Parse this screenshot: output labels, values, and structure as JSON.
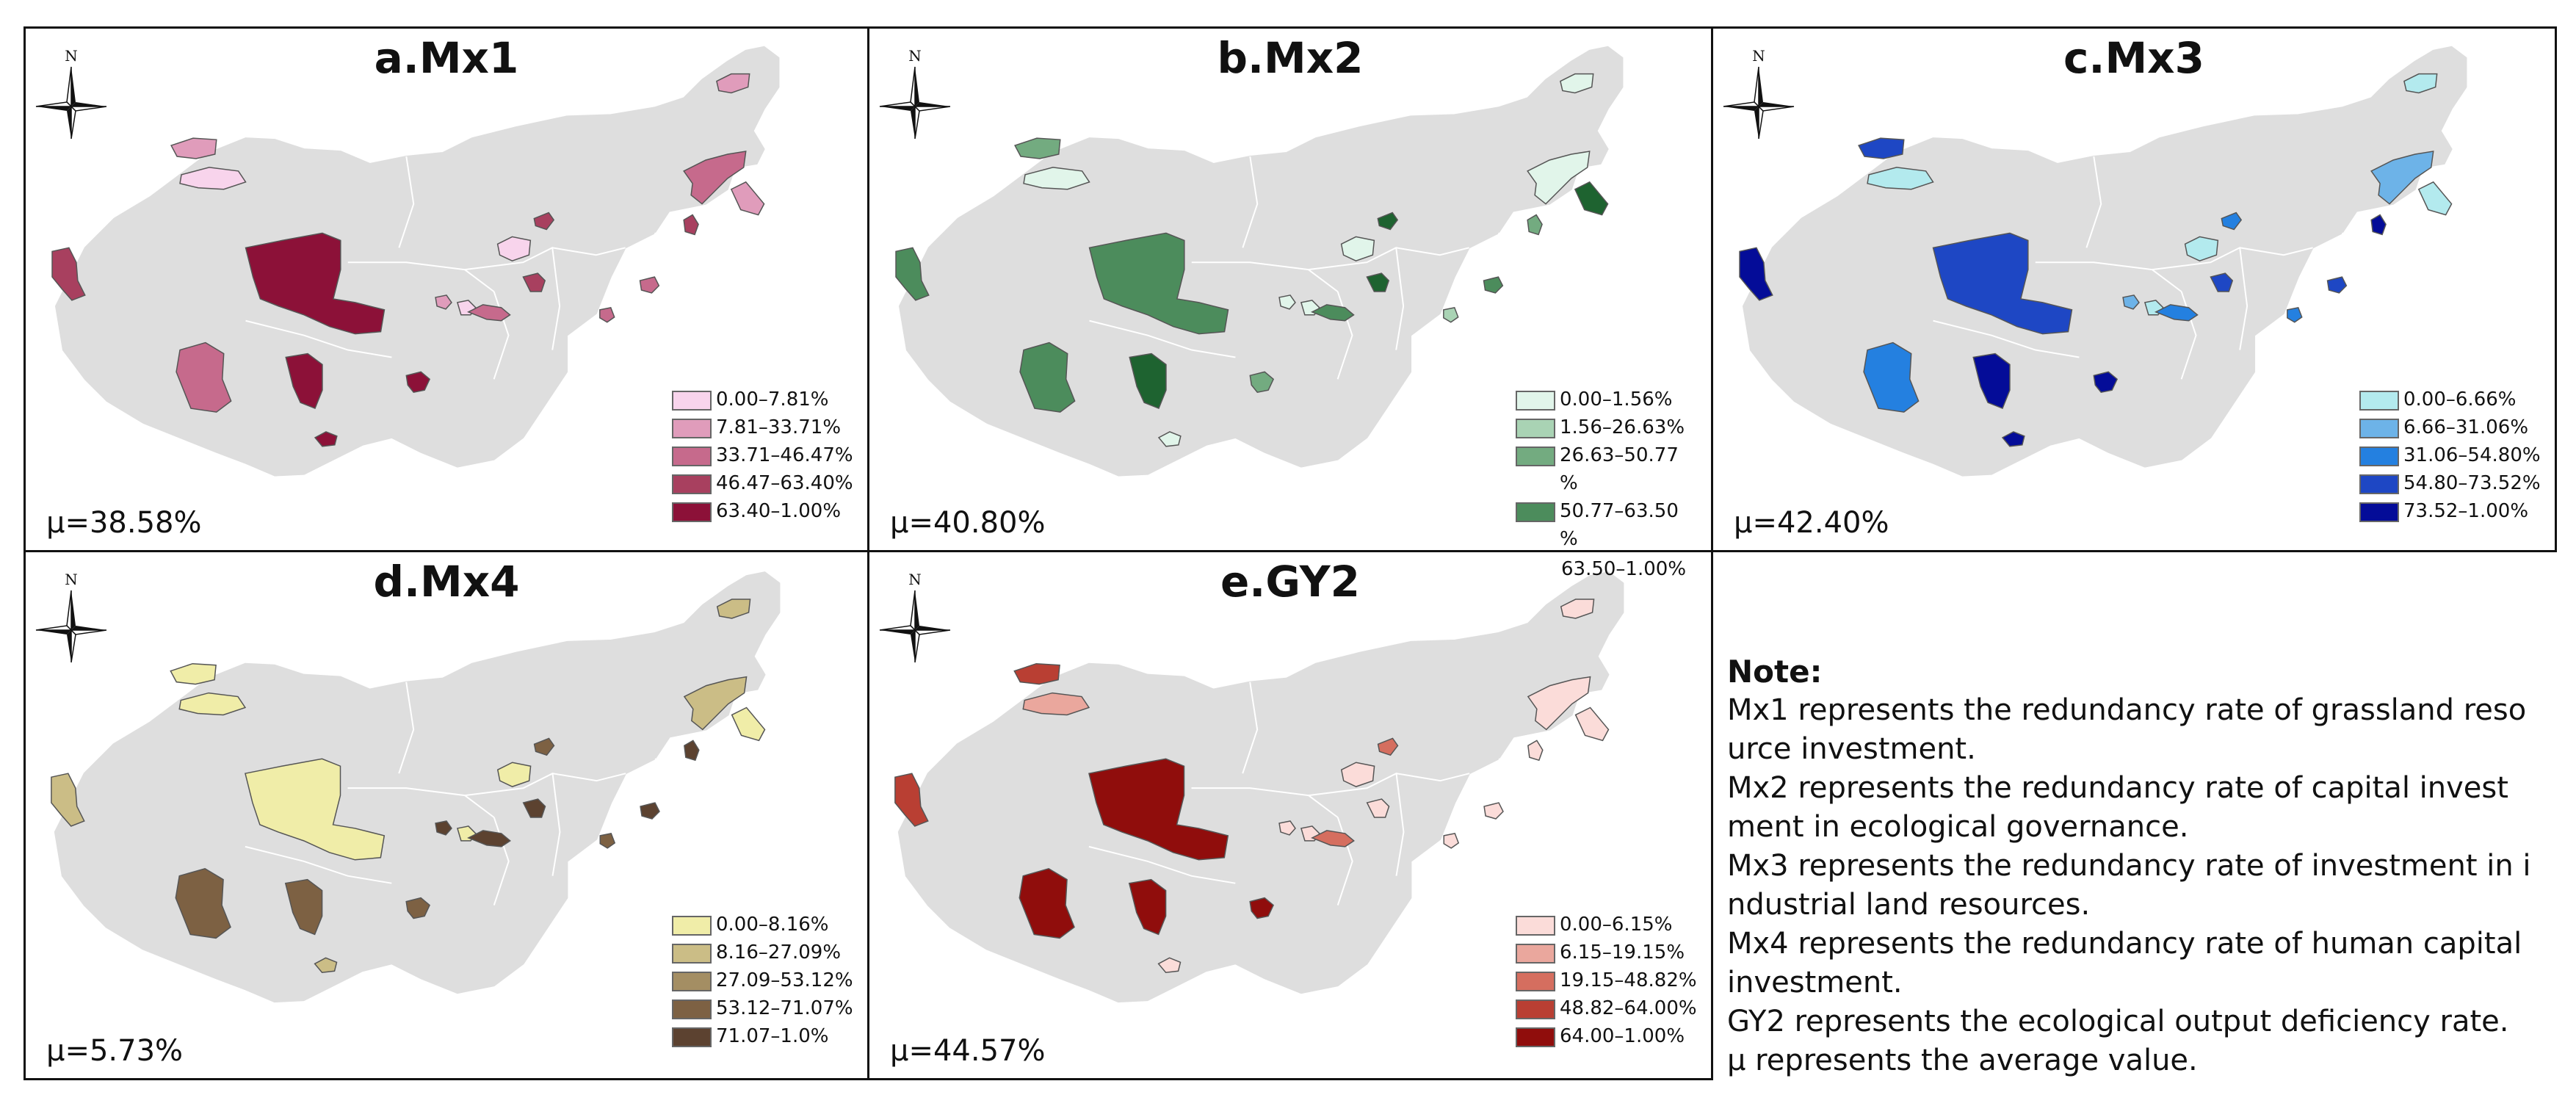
{
  "panels": [
    {
      "title": "a.Mx1",
      "mu": "μ=38.58%",
      "legend": [
        "0.00–7.81%",
        "7.81–33.71%",
        "33.71–46.47%",
        "46.47–63.40%",
        "63.40–1.00%"
      ],
      "colors": [
        "#f8d4ec",
        "#e09cbb",
        "#c66a8c",
        "#a8405f",
        "#8c1138"
      ],
      "region_classes": [
        1,
        0,
        3,
        4,
        2,
        4,
        4,
        4,
        0,
        2,
        3,
        0,
        1,
        2,
        1,
        3,
        2,
        1,
        3,
        2
      ]
    },
    {
      "title": "b.Mx2",
      "mu": "μ=40.80%",
      "legend": [
        "0.00–1.56%",
        "1.56–26.63%",
        "26.63–50.77",
        "%",
        "50.77–63.50",
        "%"
      ],
      "legend_overflow": "63.50–1.00%",
      "colors": [
        "#e1f5ea",
        "#a9d3b4",
        "#73ab80",
        "#4c8c5c",
        "#1e6330"
      ],
      "region_classes": [
        2,
        0,
        3,
        3,
        3,
        4,
        2,
        0,
        0,
        3,
        4,
        0,
        0,
        0,
        4,
        2,
        1,
        0,
        4,
        3
      ]
    },
    {
      "title": "c.Mx3",
      "mu": "μ=42.40%",
      "legend": [
        "0.00–6.66%",
        "6.66–31.06%",
        "31.06–54.80%",
        "54.80–73.52%",
        "73.52–1.00%"
      ],
      "colors": [
        "#b3eaee",
        "#6db3e8",
        "#2480e0",
        "#1e47c4",
        "#040c98"
      ],
      "region_classes": [
        3,
        0,
        4,
        3,
        2,
        4,
        4,
        4,
        0,
        2,
        3,
        0,
        0,
        1,
        0,
        4,
        2,
        1,
        2,
        3
      ]
    },
    {
      "title": "d.Mx4",
      "mu": "μ=5.73%",
      "legend": [
        "0.00–8.16%",
        "8.16–27.09%",
        "27.09–53.12%",
        "53.12–71.07%",
        "71.07–1.0%"
      ],
      "colors": [
        "#f0eda8",
        "#cbbd86",
        "#a48e63",
        "#7d6143",
        "#5c4230"
      ],
      "region_classes": [
        0,
        0,
        1,
        0,
        3,
        3,
        3,
        1,
        0,
        4,
        4,
        0,
        1,
        1,
        0,
        4,
        3,
        4,
        3,
        4
      ]
    },
    {
      "title": "e.GY2",
      "mu": "μ=44.57%",
      "legend": [
        "0.00–6.15%",
        "6.15–19.15%",
        "19.15–48.82%",
        "48.82–64.00%",
        "64.00–1.00%"
      ],
      "colors": [
        "#fbdcd9",
        "#eaa79d",
        "#d56e5f",
        "#b93f33",
        "#900d0c"
      ],
      "region_classes": [
        3,
        1,
        3,
        4,
        4,
        4,
        4,
        0,
        0,
        2,
        0,
        0,
        0,
        0,
        0,
        0,
        0,
        0,
        2,
        0
      ]
    }
  ],
  "compass_letter": "N",
  "note": {
    "title": "Note:",
    "lines": [
      "Mx1 represents the redundancy rate of grassland reso",
      "urce investment.",
      "Mx2 represents the redundancy rate of capital invest",
      "ment in ecological governance.",
      "Mx3 represents the redundancy rate of investment in i",
      "ndustrial land resources.",
      "Mx4 represents the redundancy rate of human capital",
      "investment.",
      "GY2 represents the ecological output deficiency rate.",
      "μ represents the average value."
    ]
  }
}
